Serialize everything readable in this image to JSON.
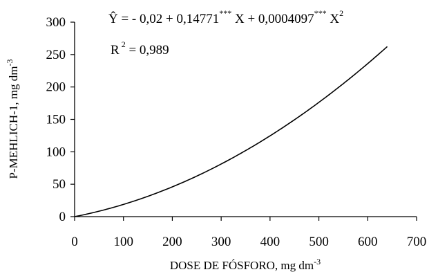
{
  "chart_data": {
    "type": "line",
    "title": "",
    "xlabel": "DOSE DE FÓSFORO, mg dm",
    "xlabel_exp": "-3",
    "ylabel": "P-MEHLICH-1, mg dm",
    "ylabel_exp": "-3",
    "xlim": [
      0,
      700
    ],
    "ylim": [
      0,
      300
    ],
    "xticks": [
      0,
      100,
      200,
      300,
      400,
      500,
      600,
      700
    ],
    "yticks": [
      0,
      50,
      100,
      150,
      200,
      250,
      300
    ],
    "grid": false,
    "equation": {
      "lhs": "Ŷ = - 0,02 + 0,14771",
      "stars1": "***",
      "mid": " X + 0,0004097",
      "stars2": "***",
      "tail": " X",
      "power": "2"
    },
    "r2": {
      "label": "R",
      "power": "2",
      "value": " = 0,989"
    },
    "model": {
      "intercept": -0.02,
      "b1": 0.14771,
      "b2": 0.0004097,
      "x_max": 640
    },
    "series": [
      {
        "x": [
          0,
          80,
          160,
          240,
          320,
          400,
          480,
          560,
          640
        ],
        "y": [
          -0.02,
          14.4,
          34.1,
          59.0,
          89.2,
          124.6,
          165.3,
          211.2,
          262.3
        ]
      }
    ],
    "line_color": "#000000"
  }
}
